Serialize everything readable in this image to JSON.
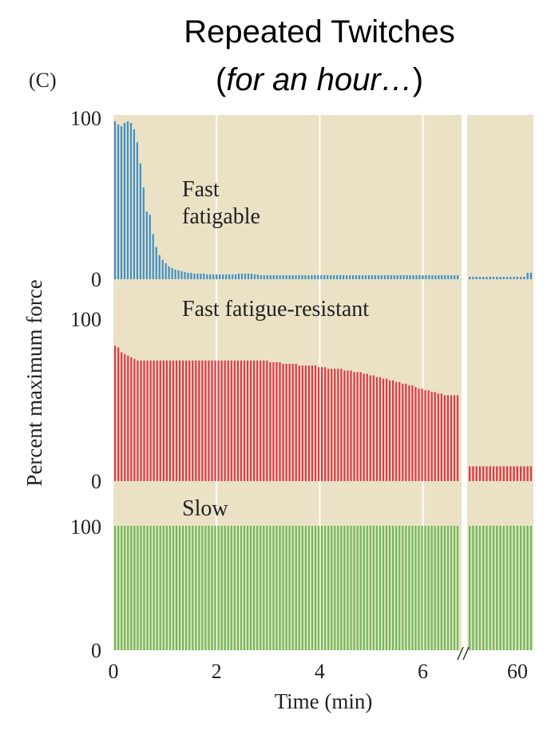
{
  "title": {
    "line1": "Repeated Twitches",
    "line2_open": "(",
    "line2_italic": "for an hour…",
    "line2_close": ")"
  },
  "panel_label": "(C)",
  "colors": {
    "background": "#ebe2c6",
    "fast_fatigable": "#3f8fc8",
    "fast_fatigue_resistant": "#dd3a4a",
    "slow": "#6dbb5a",
    "gridline": "#ffffff",
    "text": "#222222"
  },
  "chart_data": {
    "type": "bar",
    "title": "Repeated Twitches (for an hour…)",
    "xlabel": "Time (min)",
    "ylabel": "Percent maximum force",
    "xlim": [
      0,
      6.75
    ],
    "x_break_after": 6.75,
    "x_ticks": [
      "0",
      "2",
      "4",
      "6",
      "60"
    ],
    "gridlines_at_min": [
      2,
      4,
      6
    ],
    "series": [
      {
        "name": "Fast fatigable",
        "label_lines": [
          "Fast",
          "fatigable"
        ],
        "ylim": [
          0,
          100
        ],
        "y_ticks": [
          "100",
          "0"
        ],
        "values": [
          98,
          96,
          95,
          97,
          98,
          97,
          93,
          85,
          72,
          57,
          42,
          40,
          28,
          20,
          15,
          12,
          10,
          8,
          7,
          6,
          5.5,
          5,
          4.5,
          4,
          4,
          3.5,
          3.5,
          3.5,
          3.5,
          3,
          3,
          3,
          3,
          3,
          3,
          3,
          3,
          3,
          3,
          3.5,
          3.5,
          3.5,
          3.5,
          3.5,
          3,
          3,
          2.5,
          2.5,
          2.5,
          2.5,
          2.5,
          2.5,
          2.5,
          2.5,
          2.5,
          2.5,
          2.5,
          2.5,
          2.5,
          2.5,
          2.5,
          2.5,
          2.5,
          2.5,
          2.5,
          2.5,
          2.5,
          2.5,
          2.5,
          2.5,
          2.5,
          2.5,
          2.5,
          2.5,
          2.5,
          2.5,
          2.5,
          2.5,
          2.5,
          2.5,
          2.5,
          2.5,
          2.5,
          2.5,
          2.5,
          2.5,
          2.5,
          2.5,
          2.5,
          2.5,
          2.5,
          2.5,
          2.5,
          2.5,
          2.5,
          2.5,
          2.5,
          2.5,
          2.5,
          2.5,
          2.5,
          2.5,
          2.5,
          2.5,
          2.5,
          2.5,
          2.5,
          2.5,
          2.5
        ],
        "after_break_values": [
          1.5,
          1.5,
          1.5,
          1.5,
          1.5,
          1.5,
          1.5,
          1.5,
          1.5,
          1.5,
          1.5,
          1.5,
          1.5,
          1.5,
          1.5,
          1.5,
          1.5,
          4,
          4
        ]
      },
      {
        "name": "Fast fatigue-resistant",
        "label_lines": [
          "Fast fatigue-resistant"
        ],
        "ylim": [
          0,
          100
        ],
        "y_ticks": [
          "100",
          "0"
        ],
        "values": [
          82,
          81,
          78,
          77,
          76,
          75,
          74,
          73,
          73,
          73,
          73,
          73,
          73,
          73,
          73,
          73,
          73,
          73,
          73,
          73,
          73,
          73,
          73,
          73,
          73,
          73,
          73,
          73,
          73,
          73,
          73,
          73,
          73,
          73,
          73,
          73,
          73,
          73,
          73,
          73,
          73,
          73,
          73,
          73,
          73,
          73,
          73,
          73,
          72,
          72,
          72,
          72,
          71,
          71,
          71,
          71,
          71,
          70,
          70,
          70,
          70,
          70,
          70,
          69,
          69,
          69,
          68,
          68,
          68,
          68,
          68,
          67,
          67,
          67,
          66,
          66,
          66,
          65,
          65,
          64,
          64,
          63,
          63,
          62,
          62,
          61,
          61,
          60,
          60,
          59,
          59,
          58,
          58,
          57,
          56,
          56,
          55,
          55,
          54,
          54,
          53,
          53,
          52,
          52,
          52,
          52,
          52
        ],
        "after_break_values": [
          9,
          9,
          9,
          9,
          9,
          9,
          9,
          9,
          9,
          9,
          9,
          9,
          9,
          9,
          9,
          9,
          9,
          9,
          9
        ]
      },
      {
        "name": "Slow",
        "label_lines": [
          "Slow"
        ],
        "ylim": [
          0,
          100
        ],
        "y_ticks": [
          "100",
          "0"
        ],
        "values": [
          100,
          100,
          100,
          100,
          100,
          100,
          100,
          100,
          100,
          100,
          100,
          100,
          100,
          100,
          100,
          100,
          100,
          100,
          100,
          100,
          100,
          100,
          100,
          100,
          100,
          100,
          100,
          100,
          100,
          100,
          100,
          100,
          100,
          100,
          100,
          100,
          100,
          100,
          100,
          100,
          100,
          100,
          100,
          100,
          100,
          100,
          100,
          100,
          100,
          100,
          100,
          100,
          100,
          100,
          100,
          100,
          100,
          100,
          100,
          100,
          100,
          100,
          100,
          100,
          100,
          100,
          100,
          100,
          100,
          100,
          100,
          100,
          100,
          100,
          100,
          100,
          100,
          100,
          100,
          100,
          100,
          100,
          100,
          100,
          100,
          100,
          100,
          100,
          100,
          100,
          100,
          100,
          100,
          100,
          100,
          100,
          100,
          100,
          100,
          100,
          100,
          100,
          100,
          100,
          100,
          100,
          100
        ],
        "after_break_values": [
          100,
          100,
          100,
          100,
          100,
          100,
          100,
          100,
          100,
          100,
          100,
          100,
          100,
          100,
          100,
          100,
          100,
          100,
          100
        ]
      }
    ]
  }
}
